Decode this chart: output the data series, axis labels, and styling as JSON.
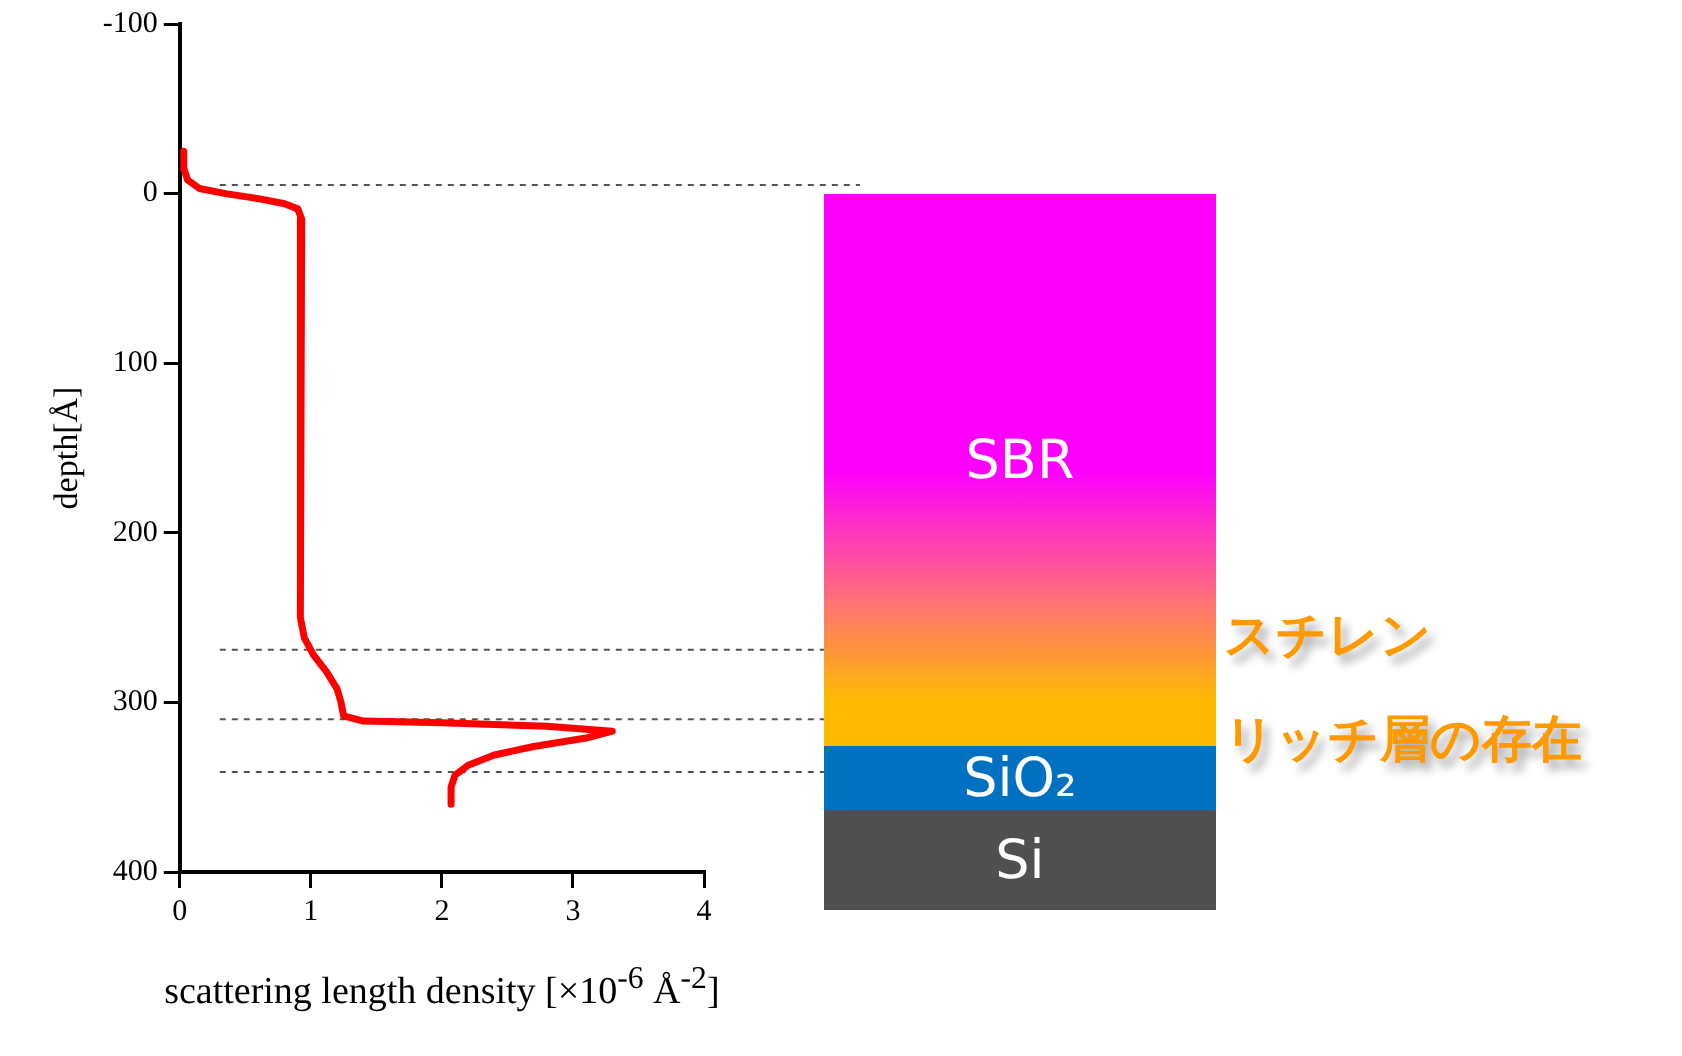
{
  "chart_data": {
    "type": "line",
    "xlabel": "scattering length density [×10$^{-6}$ Å$^{-2}$]",
    "ylabel": "depth[Å]",
    "xlim": [
      0,
      4
    ],
    "xticks": [
      0,
      1,
      2,
      3,
      4
    ],
    "ylim": [
      400,
      -100
    ],
    "yticks": [
      -100,
      0,
      100,
      200,
      300,
      400
    ],
    "grid": false,
    "legend": false,
    "marker": "none",
    "line_style": "solid",
    "series": [
      {
        "color": "#ff0000",
        "x": [
          0.03,
          0.03,
          0.06,
          0.15,
          0.35,
          0.6,
          0.8,
          0.9,
          0.93,
          0.92,
          0.95,
          1.02,
          1.12,
          1.2,
          1.23,
          1.25,
          1.4,
          2.0,
          2.8,
          3.3,
          3.1,
          2.7,
          2.4,
          2.2,
          2.1,
          2.07,
          2.07
        ],
        "values": [
          -25,
          -15,
          -8,
          -3,
          0,
          3,
          6,
          9,
          15,
          250,
          262,
          272,
          282,
          292,
          300,
          308,
          311,
          312,
          314,
          317,
          321,
          326,
          331,
          337,
          343,
          350,
          360
        ]
      }
    ],
    "ref_lines": [
      {
        "axis": "y",
        "value": -5,
        "color": "#555555",
        "line_style": "dashed"
      },
      {
        "axis": "y",
        "value": 269,
        "color": "#555555",
        "line_style": "dashed"
      },
      {
        "axis": "y",
        "value": 310,
        "color": "#555555",
        "line_style": "dashed"
      },
      {
        "axis": "y",
        "value": 341,
        "color": "#555555",
        "line_style": "dashed"
      }
    ],
    "annotations": [
      "SBR",
      "SiO₂",
      "Si",
      "スチレン",
      "リッチ層の存在"
    ]
  }
}
